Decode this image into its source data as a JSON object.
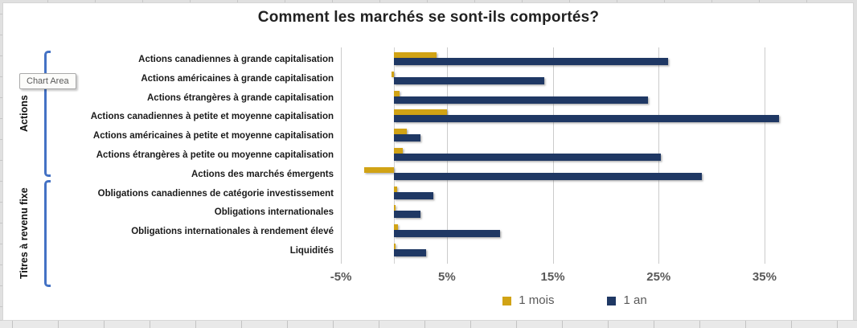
{
  "window": {
    "tooltip": "Chart Area"
  },
  "colors": {
    "series_1_mois": "#D1A315",
    "series_1_an": "#1F3864",
    "bracket_blue": "#4472C4",
    "gridline": "#CBCBCB",
    "axis_text": "#595959",
    "category_text": "#1A1A1A"
  },
  "chart_data": {
    "type": "bar",
    "orientation": "horizontal",
    "title": "Comment les marchés se sont-ils comportés?",
    "categories": [
      "Actions canadiennes à grande capitalisation",
      "Actions américaines à grande capitalisation",
      "Actions étrangères à grande capitalisation",
      "Actions canadiennes à petite et moyenne capitalisation",
      "Actions américaines à petite et moyenne capitalisation",
      "Actions étrangères à petite ou moyenne capitalisation",
      "Actions des marchés émergents",
      "Obligations canadiennes de catégorie investissement",
      "Obligations internationales",
      "Obligations internationales à rendement élevé",
      "Liquidités"
    ],
    "groups": [
      {
        "label": "Actions",
        "from": 0,
        "to": 6
      },
      {
        "label": "Titres à revenu fixe",
        "from": 7,
        "to": 10
      }
    ],
    "series": [
      {
        "name": "1 mois",
        "color": "#D1A315",
        "values": [
          4.0,
          -0.2,
          0.5,
          5.0,
          1.2,
          0.8,
          -2.8,
          0.3,
          0.1,
          0.4,
          0.1
        ]
      },
      {
        "name": "1 an",
        "color": "#1F3864",
        "values": [
          25.9,
          14.2,
          24.0,
          36.4,
          2.5,
          25.2,
          29.1,
          3.7,
          2.5,
          10.0,
          3.0
        ]
      }
    ],
    "x_axis": {
      "unit": "%",
      "ticks": [
        {
          "label": "-5%",
          "value": -5
        },
        {
          "label": "5%",
          "value": 5
        },
        {
          "label": "15%",
          "value": 15
        },
        {
          "label": "25%",
          "value": 25
        },
        {
          "label": "35%",
          "value": 35
        }
      ],
      "range": [
        -5,
        38
      ]
    },
    "grid": true,
    "legend_position": "bottom"
  }
}
